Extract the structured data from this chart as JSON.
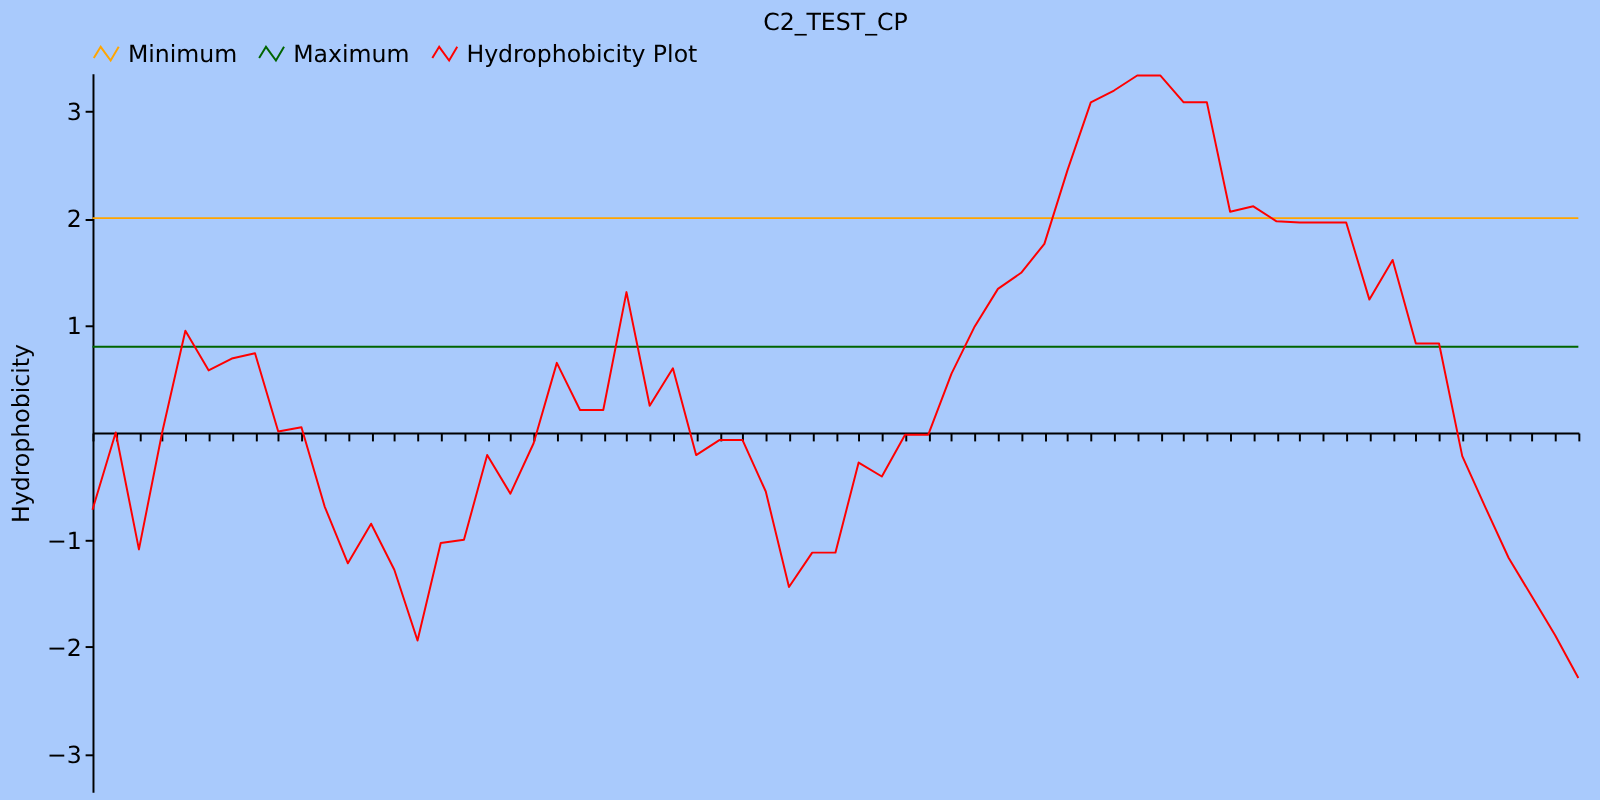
{
  "chart_data": {
    "type": "line",
    "title": "C2_TEST_CP",
    "ylabel": "Hydrophobicity",
    "categories": [
      null,
      null,
      null,
      null,
      null,
      null,
      null,
      null,
      null,
      null,
      null,
      null,
      null,
      null,
      null,
      null,
      null,
      null,
      null,
      null,
      null,
      null,
      null,
      null,
      null,
      null,
      null,
      null,
      null,
      null,
      null,
      null,
      null,
      null,
      null,
      null,
      null,
      null,
      null,
      null,
      null,
      null,
      null,
      null,
      null,
      null,
      null,
      null,
      null,
      null,
      null,
      null,
      null,
      null,
      null,
      null,
      null,
      null,
      null,
      null,
      null,
      null,
      null,
      null,
      null
    ],
    "series": [
      {
        "name": "Minimum",
        "color": "#ffa500",
        "values": [
          2,
          2,
          2,
          2,
          2,
          2,
          2,
          2,
          2,
          2,
          2,
          2,
          2,
          2,
          2,
          2,
          2,
          2,
          2,
          2,
          2,
          2,
          2,
          2,
          2,
          2,
          2,
          2,
          2,
          2,
          2,
          2,
          2,
          2,
          2,
          2,
          2,
          2,
          2,
          2,
          2,
          2,
          2,
          2,
          2,
          2,
          2,
          2,
          2,
          2,
          2,
          2,
          2,
          2,
          2,
          2,
          2,
          2,
          2,
          2,
          2,
          2,
          2,
          2,
          2
        ]
      },
      {
        "name": "Maximum",
        "color": "#006400",
        "values": [
          0.8,
          0.8,
          0.8,
          0.8,
          0.8,
          0.8,
          0.8,
          0.8,
          0.8,
          0.8,
          0.8,
          0.8,
          0.8,
          0.8,
          0.8,
          0.8,
          0.8,
          0.8,
          0.8,
          0.8,
          0.8,
          0.8,
          0.8,
          0.8,
          0.8,
          0.8,
          0.8,
          0.8,
          0.8,
          0.8,
          0.8,
          0.8,
          0.8,
          0.8,
          0.8,
          0.8,
          0.8,
          0.8,
          0.8,
          0.8,
          0.8,
          0.8,
          0.8,
          0.8,
          0.8,
          0.8,
          0.8,
          0.8,
          0.8,
          0.8,
          0.8,
          0.8,
          0.8,
          0.8,
          0.8,
          0.8,
          0.8,
          0.8,
          0.8,
          0.8,
          0.8,
          0.8,
          0.8,
          0.8,
          0.8
        ]
      },
      {
        "name": "Hydrophobicity Plot",
        "color": "#ff0000",
        "values": [
          -0.72,
          0.0,
          -1.09,
          0.0,
          0.95,
          0.58,
          0.69,
          0.74,
          0.01,
          0.05,
          -0.69,
          -1.22,
          -0.85,
          -1.28,
          -1.94,
          -1.03,
          -1.0,
          -0.21,
          -0.57,
          -0.1,
          0.65,
          0.21,
          0.21,
          1.31,
          0.25,
          0.6,
          -0.21,
          -0.07,
          -0.07,
          -0.55,
          -1.44,
          -1.12,
          -1.12,
          -0.28,
          -0.41,
          -0.02,
          -0.02,
          0.55,
          0.99,
          1.34,
          1.49,
          1.76,
          2.45,
          3.08,
          3.19,
          3.33,
          3.33,
          3.08,
          3.08,
          2.06,
          2.11,
          1.97,
          1.96,
          1.96,
          1.96,
          1.24,
          1.61,
          0.83,
          0.83,
          -0.22,
          -0.7,
          -1.17,
          -1.53,
          -1.89,
          -2.29
        ]
      }
    ],
    "ylim": [
      -3.35,
      3.35
    ],
    "yticks": [
      -3,
      -2,
      -1,
      1,
      2,
      3
    ],
    "legend": "top",
    "tick_labels": "y"
  }
}
